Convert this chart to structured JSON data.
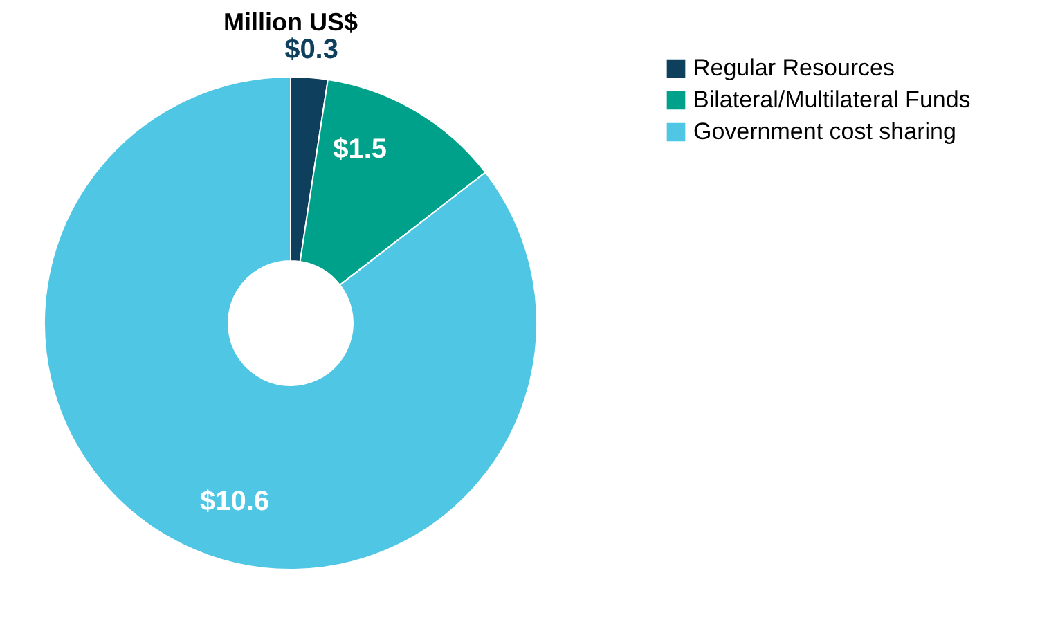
{
  "chart_data": {
    "type": "donut",
    "title": "Million US$",
    "categories": [
      "Regular Resources",
      "Bilateral/Multilateral Funds",
      "Government cost sharing"
    ],
    "values": [
      0.3,
      1.5,
      10.6
    ],
    "colors": [
      "#0e3f5c",
      "#00a18a",
      "#4fc6e3"
    ],
    "value_labels": [
      "$0.3",
      "$1.5",
      "$10.6"
    ],
    "legend": "right"
  }
}
